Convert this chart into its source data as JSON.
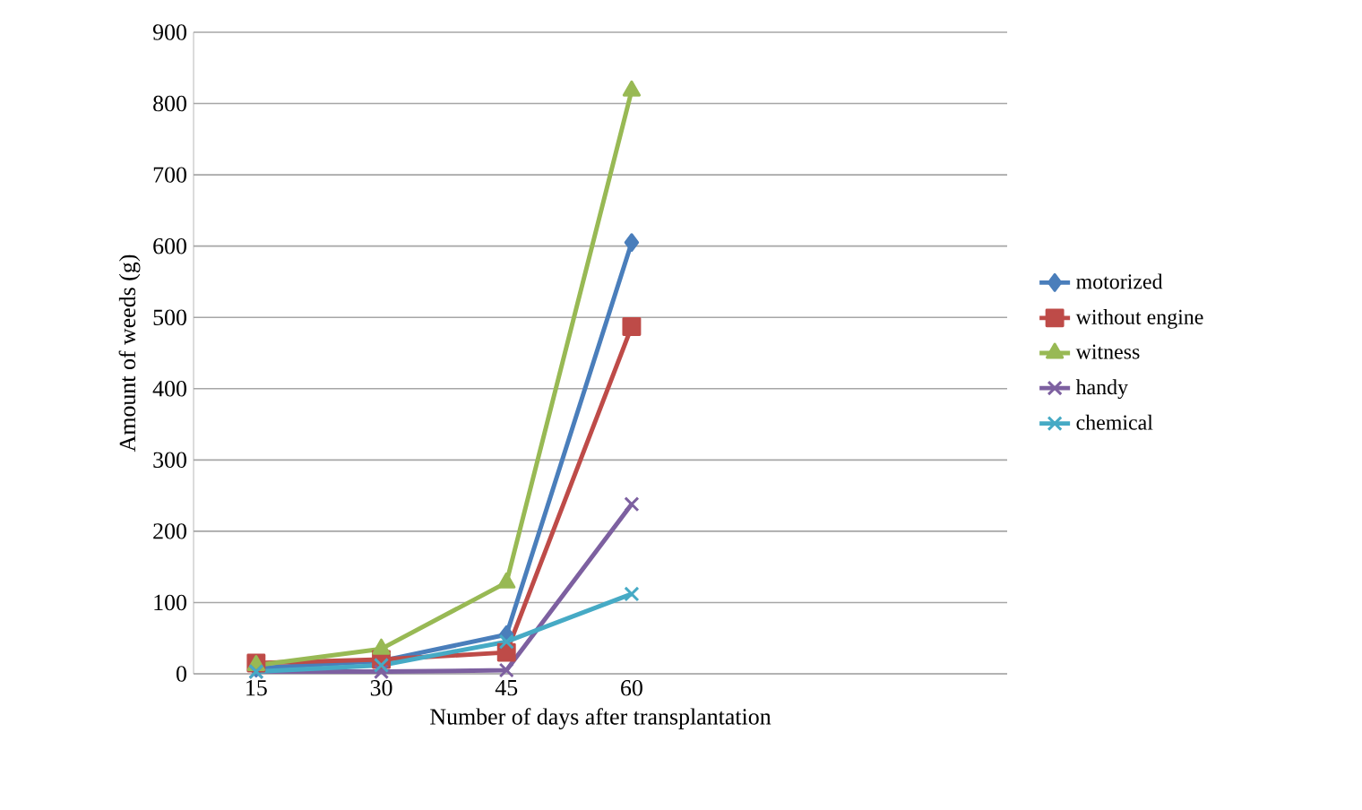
{
  "chart_data": {
    "type": "line",
    "xlabel": "Number of days after transplantation",
    "ylabel": "Amount of weeds (g)",
    "categories": [
      "15",
      "30",
      "45",
      "60"
    ],
    "series": [
      {
        "name": "motorized",
        "color": "#4a7ebb",
        "marker": "diamond",
        "values": [
          8,
          18,
          55,
          605
        ]
      },
      {
        "name": "without engine",
        "color": "#be4b48",
        "marker": "square",
        "values": [
          15,
          20,
          30,
          487
        ]
      },
      {
        "name": "witness",
        "color": "#98b954",
        "marker": "triangle",
        "values": [
          12,
          35,
          128,
          818
        ]
      },
      {
        "name": "handy",
        "color": "#7d60a0",
        "marker": "cross",
        "values": [
          3,
          3,
          5,
          238
        ]
      },
      {
        "name": "chemical",
        "color": "#46aac5",
        "marker": "cross",
        "values": [
          3,
          12,
          45,
          112
        ]
      }
    ],
    "ylim": [
      0,
      900
    ],
    "yticks": [
      0,
      100,
      200,
      300,
      400,
      500,
      600,
      700,
      800,
      900
    ],
    "grid": "y",
    "legend": "right"
  }
}
